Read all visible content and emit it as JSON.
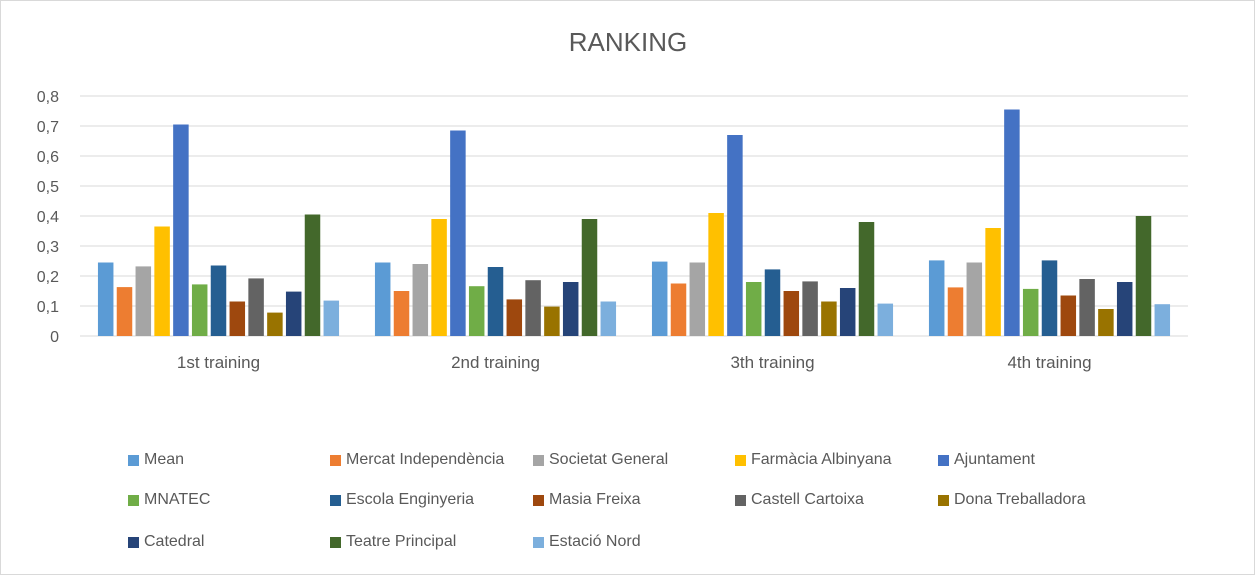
{
  "chart_data": {
    "type": "bar",
    "title": "RANKING",
    "xlabel": "",
    "ylabel": "",
    "ylim": [
      0,
      0.8
    ],
    "yticks": [
      "0",
      "0,1",
      "0,2",
      "0,3",
      "0,4",
      "0,5",
      "0,6",
      "0,7",
      "0,8"
    ],
    "grid": true,
    "legend_position": "bottom",
    "categories": [
      "1st training",
      "2nd training",
      "3th training",
      "4th training"
    ],
    "series": [
      {
        "name": "Mean",
        "color": "#5b9bd5",
        "values": [
          0.245,
          0.245,
          0.248,
          0.252
        ]
      },
      {
        "name": "Mercat Independència",
        "color": "#ed7d31",
        "values": [
          0.163,
          0.15,
          0.175,
          0.162
        ]
      },
      {
        "name": "Societat General",
        "color": "#a5a5a5",
        "values": [
          0.232,
          0.24,
          0.245,
          0.245
        ]
      },
      {
        "name": "Farmàcia Albinyana",
        "color": "#ffc000",
        "values": [
          0.365,
          0.39,
          0.41,
          0.36
        ]
      },
      {
        "name": "Ajuntament",
        "color": "#4472c4",
        "values": [
          0.705,
          0.685,
          0.67,
          0.755
        ]
      },
      {
        "name": "MNATEC",
        "color": "#70ad47",
        "values": [
          0.172,
          0.166,
          0.18,
          0.157
        ]
      },
      {
        "name": "Escola Enginyeria",
        "color": "#255e91",
        "values": [
          0.235,
          0.23,
          0.222,
          0.252
        ]
      },
      {
        "name": "Masia Freixa",
        "color": "#9e480e",
        "values": [
          0.115,
          0.122,
          0.15,
          0.135
        ]
      },
      {
        "name": "Castell Cartoixa",
        "color": "#636363",
        "values": [
          0.192,
          0.186,
          0.182,
          0.19
        ]
      },
      {
        "name": "Dona Treballadora",
        "color": "#997300",
        "values": [
          0.078,
          0.098,
          0.115,
          0.09
        ]
      },
      {
        "name": "Catedral",
        "color": "#264478",
        "values": [
          0.148,
          0.18,
          0.16,
          0.18
        ]
      },
      {
        "name": "Teatre Principal",
        "color": "#43682b",
        "values": [
          0.405,
          0.39,
          0.38,
          0.4
        ]
      },
      {
        "name": "Estació Nord",
        "color": "#7cafdd",
        "values": [
          0.118,
          0.115,
          0.108,
          0.106
        ]
      }
    ]
  }
}
